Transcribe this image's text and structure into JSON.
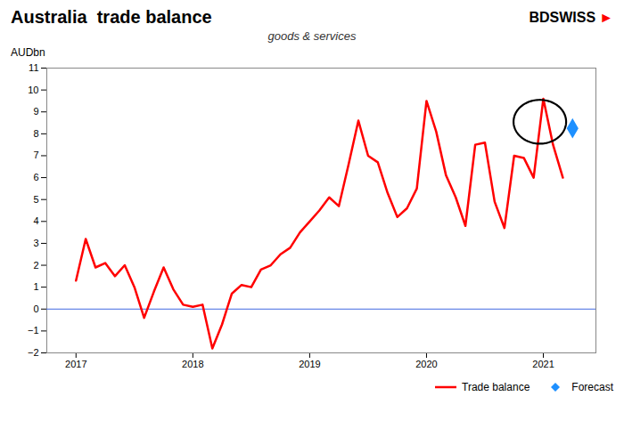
{
  "chart_data": {
    "type": "line",
    "title": "Australia  trade balance",
    "subtitle": "goods & services",
    "y_label": "AUDbn",
    "annotations": [
      {
        "text": "BDSWISS",
        "color": "#000000"
      },
      {
        "text": "►",
        "color": "#FF0000"
      }
    ],
    "x": [
      2017.0,
      2017.083,
      2017.167,
      2017.25,
      2017.333,
      2017.417,
      2017.5,
      2017.583,
      2017.667,
      2017.75,
      2017.833,
      2017.917,
      2018.0,
      2018.083,
      2018.167,
      2018.25,
      2018.333,
      2018.417,
      2018.5,
      2018.583,
      2018.667,
      2018.75,
      2018.833,
      2018.917,
      2019.0,
      2019.083,
      2019.167,
      2019.25,
      2019.333,
      2019.417,
      2019.5,
      2019.583,
      2019.667,
      2019.75,
      2019.833,
      2019.917,
      2020.0,
      2020.083,
      2020.167,
      2020.25,
      2020.333,
      2020.417,
      2020.5,
      2020.583,
      2020.667,
      2020.75,
      2020.833,
      2020.917,
      2021.0,
      2021.083,
      2021.167
    ],
    "series": [
      {
        "name": "Trade balance",
        "color": "#FF0000",
        "line_style": "solid",
        "values": [
          1.3,
          3.2,
          1.9,
          2.1,
          1.5,
          2.0,
          1.0,
          -0.4,
          0.8,
          1.9,
          0.9,
          0.2,
          0.1,
          0.2,
          -1.8,
          -0.7,
          0.7,
          1.1,
          1.0,
          1.8,
          2.0,
          2.5,
          2.8,
          3.5,
          4.0,
          4.5,
          5.1,
          4.7,
          6.6,
          8.6,
          7.0,
          6.7,
          5.3,
          4.2,
          4.6,
          5.5,
          9.5,
          8.1,
          6.1,
          5.1,
          3.8,
          7.5,
          7.6,
          4.9,
          3.7,
          7.0,
          6.9,
          6.0,
          9.6,
          7.5,
          6.0
        ]
      },
      {
        "name": "Forecast",
        "type": "scatter",
        "marker": "diamond",
        "color": "#1E90FF",
        "x": [
          2021.25
        ],
        "values": [
          8.25
        ]
      }
    ],
    "reference_line": {
      "y": 0,
      "color": "#4169E1"
    },
    "circle": {
      "x": 2020.97,
      "y": 8.55,
      "width": 0.45,
      "height": 2.0,
      "color": "#000000"
    },
    "xlim": [
      2016.75,
      2021.45
    ],
    "xticks": [
      2017,
      2018,
      2019,
      2020,
      2021
    ],
    "ylim": [
      -2,
      11
    ],
    "yticks": [
      -2,
      -1,
      0,
      1,
      2,
      3,
      4,
      5,
      6,
      7,
      8,
      9,
      10,
      11
    ],
    "grid": false,
    "legend": "lower right"
  }
}
